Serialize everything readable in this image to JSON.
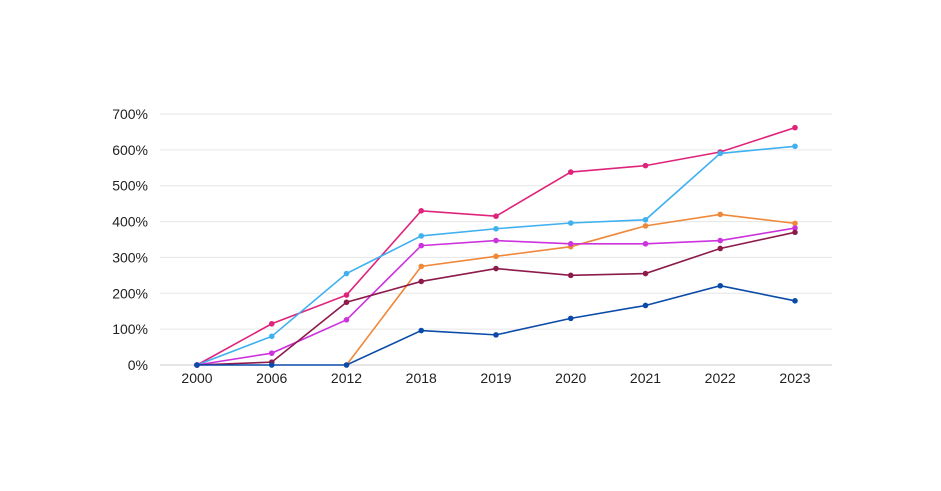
{
  "chart_data": {
    "type": "line",
    "title": "",
    "xlabel": "",
    "ylabel": "",
    "categories": [
      "2000",
      "2006",
      "2012",
      "2018",
      "2019",
      "2020",
      "2021",
      "2022",
      "2023"
    ],
    "y_ticks": [
      "0%",
      "100%",
      "200%",
      "300%",
      "400%",
      "500%",
      "600%",
      "700%"
    ],
    "ylim": [
      0,
      700
    ],
    "y_unit": "%",
    "grid": "horizontal",
    "legend": "none",
    "series": [
      {
        "color": "#e0237a",
        "values": [
          0,
          115,
          195,
          430,
          415,
          538,
          556,
          594,
          662
        ]
      },
      {
        "color": "#3fb0f0",
        "values": [
          0,
          80,
          255,
          360,
          380,
          396,
          405,
          590,
          610
        ]
      },
      {
        "color": "#f0883a",
        "values": [
          null,
          null,
          0,
          275,
          303,
          330,
          388,
          420,
          395
        ]
      },
      {
        "color": "#cc33dd",
        "values": [
          0,
          33,
          126,
          333,
          347,
          338,
          338,
          347,
          382
        ]
      },
      {
        "color": "#8c1a4a",
        "values": [
          0,
          8,
          175,
          233,
          269,
          250,
          255,
          325,
          370
        ]
      },
      {
        "color": "#0a4aa8",
        "values": [
          0,
          0,
          0,
          96,
          84,
          130,
          166,
          221,
          179
        ]
      }
    ]
  }
}
